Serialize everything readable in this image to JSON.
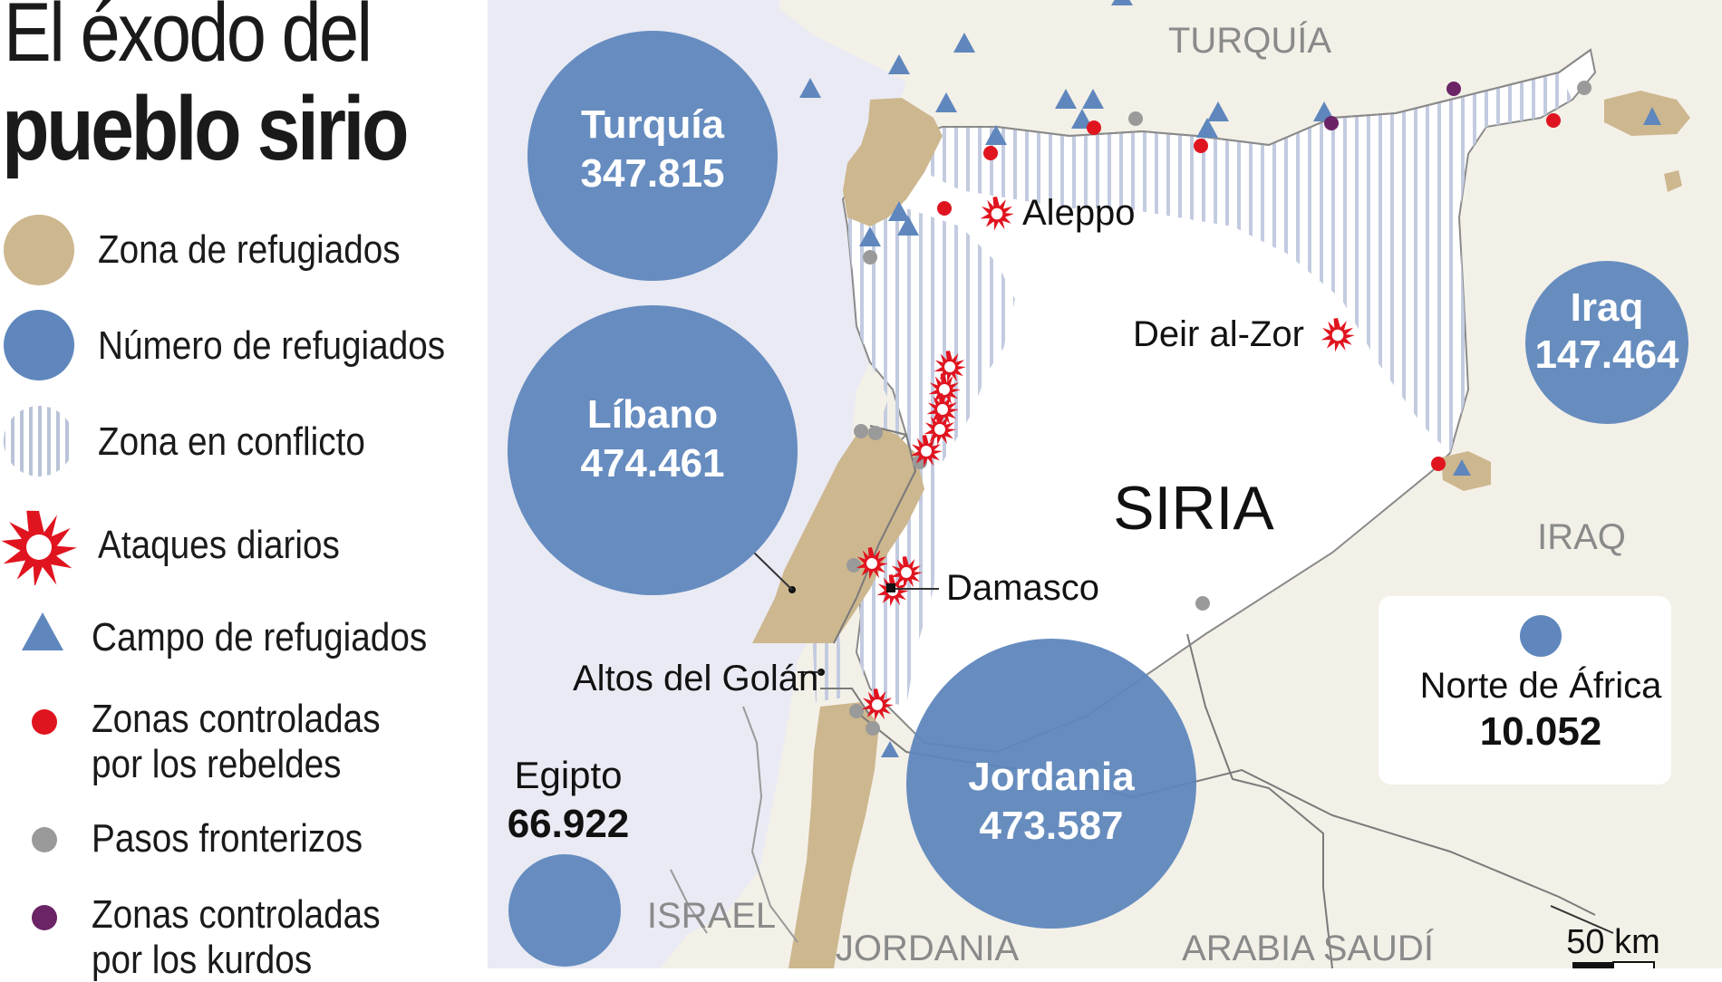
{
  "title": {
    "line1": "El éxodo del",
    "line2": "pueblo sirio"
  },
  "legend": {
    "items": [
      {
        "label": "Zona de refugiados"
      },
      {
        "label": "Número de refugiados"
      },
      {
        "label": "Zona en conflicto"
      },
      {
        "label": "Ataques diarios"
      },
      {
        "label": "Campo de refugiados"
      },
      {
        "label_lines": [
          "Zonas controladas",
          "por los rebeldes"
        ]
      },
      {
        "label": "Pasos fronterizos"
      },
      {
        "label_lines": [
          "Zonas controladas",
          "por los kurdos"
        ]
      }
    ]
  },
  "map": {
    "country_labels": {
      "turquia": "TURQUÍA",
      "siria": "SIRIA",
      "iraq": "IRAQ",
      "israel": "ISRAEL",
      "jordania": "JORDANIA",
      "arabia_saudi": "ARABIA SAUDÍ"
    },
    "cities": {
      "aleppo": "Aleppo",
      "deir_al_zor": "Deir al-Zor",
      "damasco": "Damasco",
      "altos_del_golan": "Altos del Golán"
    },
    "refugees": {
      "turquia": {
        "name": "Turquía",
        "count": "347.815"
      },
      "libano": {
        "name": "Líbano",
        "count": "474.461"
      },
      "jordania": {
        "name": "Jordania",
        "count": "473.587"
      },
      "iraq": {
        "name": "Iraq",
        "count": "147.464"
      },
      "egipto": {
        "name": "Egipto",
        "count": "66.922"
      },
      "norte_africa": {
        "name": "Norte de África",
        "count": "10.052"
      }
    },
    "scale_label": "50 km"
  },
  "colors": {
    "refugee_zone": "#cdb78f",
    "refugee_bubble": "#5f87bd",
    "attack": "#e0141f",
    "camp": "#5f87bd",
    "rebel": "#e0141f",
    "border_crossing": "#9a9a9a",
    "kurd": "#6b2466",
    "sea": "#e9eaf3",
    "land": "#f3f0e8"
  }
}
